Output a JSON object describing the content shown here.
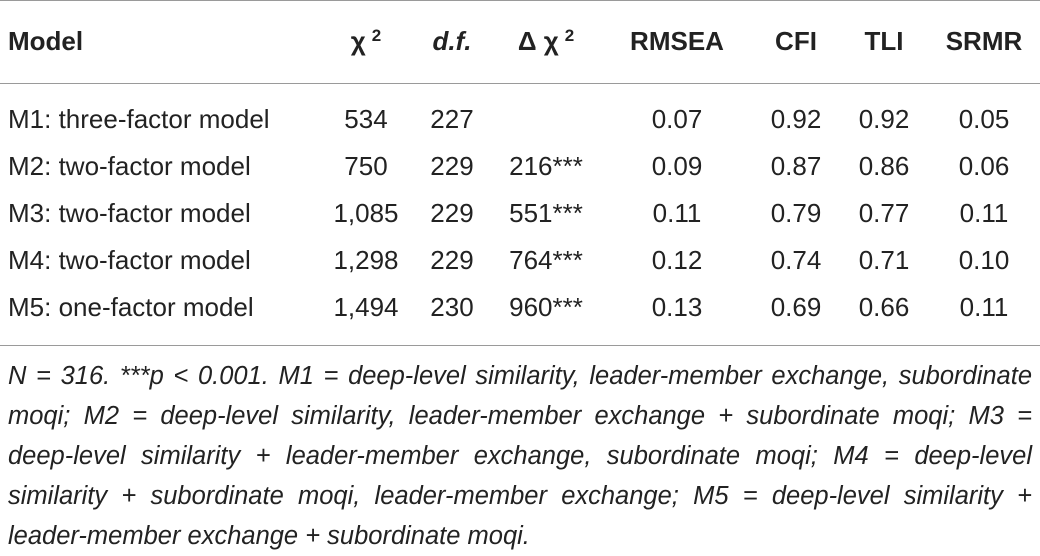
{
  "table": {
    "headers": [
      {
        "label": "Model",
        "sup": ""
      },
      {
        "label": "χ",
        "sup": "2"
      },
      {
        "label": "d.f.",
        "sup": ""
      },
      {
        "label": "Δ χ",
        "sup": "2"
      },
      {
        "label": "RMSEA",
        "sup": ""
      },
      {
        "label": "CFI",
        "sup": ""
      },
      {
        "label": "TLI",
        "sup": ""
      },
      {
        "label": "SRMR",
        "sup": ""
      }
    ],
    "rows": [
      [
        "M1: three-factor model",
        "534",
        "227",
        "",
        "0.07",
        "0.92",
        "0.92",
        "0.05"
      ],
      [
        "M2: two-factor model",
        "750",
        "229",
        "216***",
        "0.09",
        "0.87",
        "0.86",
        "0.06"
      ],
      [
        "M3: two-factor model",
        "1,085",
        "229",
        "551***",
        "0.11",
        "0.79",
        "0.77",
        "0.11"
      ],
      [
        "M4: two-factor model",
        "1,298",
        "229",
        "764***",
        "0.12",
        "0.74",
        "0.71",
        "0.10"
      ],
      [
        "M5: one-factor model",
        "1,494",
        "230",
        "960***",
        "0.13",
        "0.69",
        "0.66",
        "0.11"
      ]
    ]
  },
  "note": {
    "text": "N = 316. ***p < 0.001. M1 = deep-level similarity, leader-member exchange, subordinate moqi; M2 = deep-level similarity, leader-member exchange + subordinate moqi; M3 = deep-level similarity + leader-member exchange, subordinate moqi; M4 = deep-level similarity + subordinate moqi, leader-member exchange; M5 = deep-level similarity + leader-member exchange + subordinate moqi."
  }
}
